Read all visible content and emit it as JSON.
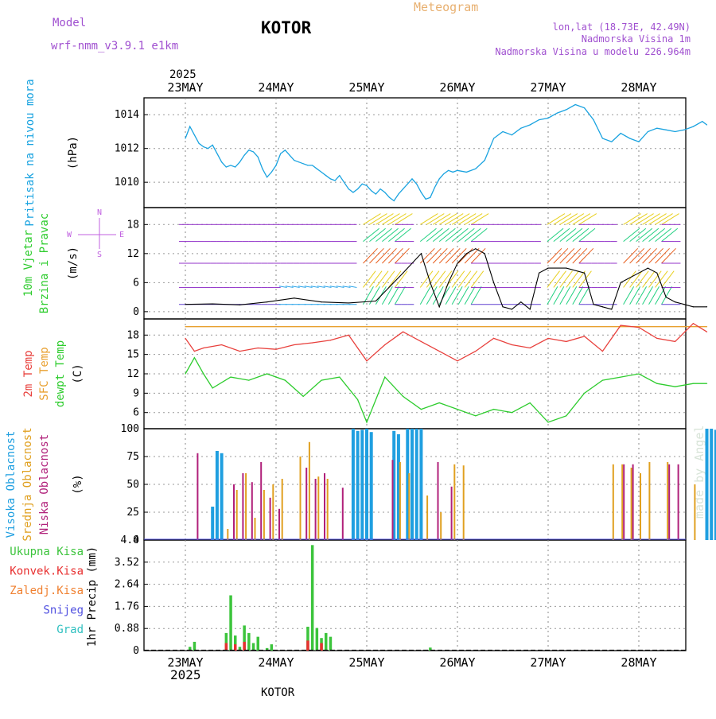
{
  "header": {
    "model_label": "Model",
    "model_name": "wrf-nmm_v3.9.1 e1km",
    "station": "KOTOR",
    "title": "Meteogram",
    "coords": "lon,lat (18.73E, 42.49N)",
    "elevation": "Nadmorska Visina 1m",
    "model_elevation": "Nadmorska Visina u modelu 226.964m"
  },
  "footer": {
    "station": "KOTOR",
    "credit": "made by Angel"
  },
  "colors": {
    "pressure": "#1aa3e0",
    "temp2m": "#e8403c",
    "sfc_temp": "#e8a030",
    "dewpoint": "#2ecc2e",
    "cloud_high": "#1f9fe0",
    "cloud_mid": "#e0a020",
    "cloud_low": "#b0207a",
    "precip_total": "#3cc43c",
    "precip_conv": "#e83030",
    "model_purple": "#a050d0",
    "compass": "#c060e0"
  },
  "chart_data": [
    {
      "type": "line",
      "id": "pressure",
      "label_left": "Pritisak na nivou mora",
      "unit": "(hPa)",
      "year": "2025",
      "x_ticks": [
        "23MAY",
        "24MAY",
        "25MAY",
        "26MAY",
        "27MAY",
        "28MAY"
      ],
      "ylim": [
        1008.5,
        1015
      ],
      "y_ticks": [
        1010,
        1012,
        1014
      ],
      "series": [
        {
          "x": [
            0,
            0.05,
            0.1,
            0.15,
            0.2,
            0.25,
            0.3,
            0.35,
            0.4,
            0.45,
            0.5,
            0.55,
            0.6,
            0.65,
            0.7,
            0.75,
            0.8,
            0.85,
            0.9,
            0.95,
            1.0,
            1.05,
            1.1,
            1.15,
            1.2,
            1.25,
            1.3,
            1.35,
            1.4,
            1.45,
            1.5,
            1.55,
            1.6,
            1.65,
            1.7,
            1.75,
            1.8,
            1.85,
            1.9,
            1.95,
            2.0,
            2.05,
            2.1,
            2.15,
            2.2,
            2.25,
            2.3,
            2.35,
            2.4,
            2.45,
            2.5,
            2.55,
            2.6,
            2.65,
            2.7,
            2.75,
            2.8,
            2.85,
            2.9,
            2.95,
            3.0,
            3.1,
            3.2,
            3.3,
            3.4,
            3.5,
            3.6,
            3.7,
            3.8,
            3.9,
            4.0,
            4.1,
            4.2,
            4.3,
            4.4,
            4.5,
            4.6,
            4.7,
            4.8,
            4.9,
            5.0,
            5.1,
            5.2,
            5.3,
            5.4,
            5.5,
            5.6,
            5.7,
            5.75
          ],
          "values": [
            1012.6,
            1013.3,
            1012.8,
            1012.3,
            1012.1,
            1012.0,
            1012.2,
            1011.7,
            1011.2,
            1010.9,
            1011.0,
            1010.9,
            1011.2,
            1011.6,
            1011.9,
            1011.8,
            1011.5,
            1010.8,
            1010.3,
            1010.6,
            1011.0,
            1011.7,
            1011.9,
            1011.6,
            1011.3,
            1011.2,
            1011.1,
            1011.0,
            1011.0,
            1010.8,
            1010.6,
            1010.4,
            1010.2,
            1010.1,
            1010.4,
            1010.0,
            1009.6,
            1009.4,
            1009.6,
            1009.9,
            1009.8,
            1009.5,
            1009.3,
            1009.6,
            1009.4,
            1009.1,
            1008.9,
            1009.3,
            1009.6,
            1009.9,
            1010.2,
            1009.9,
            1009.4,
            1009.0,
            1009.1,
            1009.7,
            1010.2,
            1010.5,
            1010.7,
            1010.6,
            1010.7,
            1010.6,
            1010.8,
            1011.3,
            1012.6,
            1013.0,
            1012.8,
            1013.2,
            1013.4,
            1013.7,
            1013.8,
            1014.1,
            1014.3,
            1014.6,
            1014.4,
            1013.7,
            1012.6,
            1012.4,
            1012.9,
            1012.6,
            1012.4,
            1013.0,
            1013.2,
            1013.1,
            1013.0,
            1013.1,
            1013.3,
            1013.6,
            1013.4
          ]
        }
      ]
    },
    {
      "type": "line",
      "id": "wind",
      "label_left": [
        "10m Vjetar",
        "Brzina i Pravac"
      ],
      "unit": "(m/s)",
      "compass": {
        "n": "N",
        "s": "S",
        "e": "E",
        "w": "W"
      },
      "ylim": [
        -1.5,
        21.5
      ],
      "y_ticks": [
        0,
        6,
        12,
        18
      ],
      "series": [
        {
          "name": "speed",
          "x": [
            0,
            0.3,
            0.6,
            0.9,
            1.2,
            1.5,
            1.8,
            2.1,
            2.4,
            2.6,
            2.7,
            2.8,
            2.9,
            3.0,
            3.1,
            3.2,
            3.3,
            3.4,
            3.5,
            3.6,
            3.7,
            3.8,
            3.9,
            4.0,
            4.2,
            4.4,
            4.5,
            4.6,
            4.7,
            4.8,
            5.0,
            5.1,
            5.2,
            5.3,
            5.4,
            5.5,
            5.6,
            5.75
          ],
          "values": [
            1.5,
            1.6,
            1.4,
            2.0,
            2.8,
            2.0,
            1.8,
            2.2,
            8.0,
            12.0,
            6.0,
            1.0,
            6.0,
            10.0,
            12.0,
            13.0,
            12.0,
            6.0,
            1.0,
            0.5,
            2.0,
            0.5,
            8.0,
            9.0,
            9.0,
            8.0,
            1.5,
            1.0,
            0.5,
            6.0,
            8.0,
            9.0,
            8.0,
            3.0,
            2.0,
            1.5,
            1.0,
            1.0
          ]
        }
      ]
    },
    {
      "type": "line",
      "id": "temperature",
      "label_left": [
        "2m Temp",
        "SFC Temp",
        "dewpt Temp"
      ],
      "unit": "(C)",
      "ylim": [
        3.5,
        20.5
      ],
      "y_ticks": [
        6,
        9,
        12,
        15,
        18
      ],
      "series": [
        {
          "name": "2m Temp",
          "x": [
            0,
            0.1,
            0.2,
            0.4,
            0.6,
            0.8,
            1.0,
            1.2,
            1.4,
            1.6,
            1.8,
            2.0,
            2.2,
            2.4,
            2.6,
            2.8,
            3.0,
            3.2,
            3.4,
            3.6,
            3.8,
            4.0,
            4.2,
            4.4,
            4.6,
            4.8,
            5.0,
            5.2,
            5.4,
            5.6,
            5.75
          ],
          "values": [
            17.5,
            15.5,
            16.0,
            16.5,
            15.5,
            16.0,
            15.8,
            16.5,
            16.8,
            17.2,
            18.0,
            14.0,
            16.5,
            18.5,
            17.0,
            15.5,
            14.0,
            15.5,
            17.5,
            16.5,
            16.0,
            17.5,
            17.0,
            17.8,
            15.5,
            19.5,
            19.2,
            17.5,
            17.0,
            19.8,
            18.5
          ]
        },
        {
          "name": "SFC Temp",
          "x": [
            0,
            5.75
          ],
          "values": [
            19.3,
            19.3
          ]
        },
        {
          "name": "dewpt Temp",
          "x": [
            0,
            0.1,
            0.2,
            0.3,
            0.5,
            0.7,
            0.9,
            1.1,
            1.3,
            1.5,
            1.7,
            1.9,
            2.0,
            2.2,
            2.4,
            2.6,
            2.8,
            3.0,
            3.2,
            3.4,
            3.6,
            3.8,
            4.0,
            4.2,
            4.4,
            4.6,
            4.8,
            5.0,
            5.2,
            5.4,
            5.6,
            5.75
          ],
          "values": [
            12.0,
            14.5,
            12.0,
            9.8,
            11.5,
            11.0,
            12.0,
            11.0,
            8.5,
            11.0,
            11.5,
            8.0,
            4.5,
            11.5,
            8.5,
            6.5,
            7.5,
            6.5,
            5.5,
            6.5,
            6.0,
            7.5,
            4.5,
            5.5,
            9.0,
            11.0,
            11.5,
            12.0,
            10.5,
            10.0,
            10.5,
            10.5
          ]
        }
      ]
    },
    {
      "type": "bar",
      "id": "clouds",
      "label_left": [
        "Visoka Oblacnost",
        "Srednja Oblacnost",
        "Niska Oblacnost"
      ],
      "unit": "(%)",
      "ylim": [
        0,
        100
      ],
      "y_ticks": [
        0,
        25,
        50,
        75,
        100
      ],
      "series": [
        {
          "name": "Visoka Oblacnost",
          "x": [
            0.3,
            0.35,
            0.4,
            1.85,
            1.9,
            1.95,
            2.0,
            2.05,
            2.3,
            2.35,
            2.45,
            2.5,
            2.55,
            2.6,
            5.75,
            5.8,
            5.85
          ],
          "values": [
            30,
            80,
            78,
            100,
            98,
            99,
            100,
            97,
            98,
            95,
            100,
            100,
            100,
            100,
            100,
            100,
            99
          ]
        },
        {
          "name": "Srednja Oblacnost",
          "x": [
            0.45,
            0.55,
            0.65,
            0.75,
            0.85,
            0.95,
            1.05,
            1.25,
            1.35,
            1.45,
            1.55,
            2.35,
            2.45,
            2.65,
            2.8,
            2.95,
            3.05,
            4.7,
            4.8,
            4.9,
            5.0,
            5.1,
            5.3,
            5.6
          ],
          "values": [
            10,
            45,
            60,
            20,
            45,
            50,
            55,
            75,
            88,
            57,
            55,
            70,
            60,
            40,
            25,
            68,
            67,
            68,
            68,
            65,
            60,
            70,
            70,
            50
          ]
        },
        {
          "name": "Niska Oblacnost",
          "x": [
            0.1,
            0.5,
            0.6,
            0.7,
            0.8,
            0.9,
            1.0,
            1.3,
            1.4,
            1.5,
            1.7,
            2.25,
            2.75,
            2.9,
            4.8,
            4.9,
            5.3,
            5.4
          ],
          "values": [
            78,
            50,
            60,
            52,
            70,
            38,
            28,
            65,
            55,
            60,
            47,
            72,
            70,
            48,
            68,
            68,
            68,
            68
          ]
        }
      ]
    },
    {
      "type": "bar",
      "id": "precip",
      "label_left": [
        "Ukupna Kisa",
        "Konvek.Kisa",
        "Zaledj.Kisa",
        "Snijeg",
        "Grad"
      ],
      "unit": "1hr Precip (mm)",
      "ylim": [
        0,
        4.4
      ],
      "y_ticks": [
        0,
        0.88,
        1.76,
        2.64,
        3.52,
        4.4
      ],
      "series": [
        {
          "name": "Ukupna Kisa",
          "x": [
            0.05,
            0.1,
            0.45,
            0.5,
            0.55,
            0.6,
            0.65,
            0.7,
            0.75,
            0.8,
            0.9,
            0.95,
            1.35,
            1.4,
            1.45,
            1.5,
            1.55,
            1.6,
            2.7
          ],
          "values": [
            0.15,
            0.35,
            0.7,
            2.2,
            0.6,
            0.15,
            1.0,
            0.7,
            0.3,
            0.55,
            0.1,
            0.25,
            0.95,
            4.2,
            0.9,
            0.5,
            0.7,
            0.55,
            0.12
          ]
        },
        {
          "name": "Konvek.Kisa",
          "x": [
            0.45,
            0.55,
            0.65,
            1.35,
            1.5
          ],
          "values": [
            0.3,
            0.25,
            0.35,
            0.4,
            0.3
          ]
        }
      ]
    }
  ]
}
